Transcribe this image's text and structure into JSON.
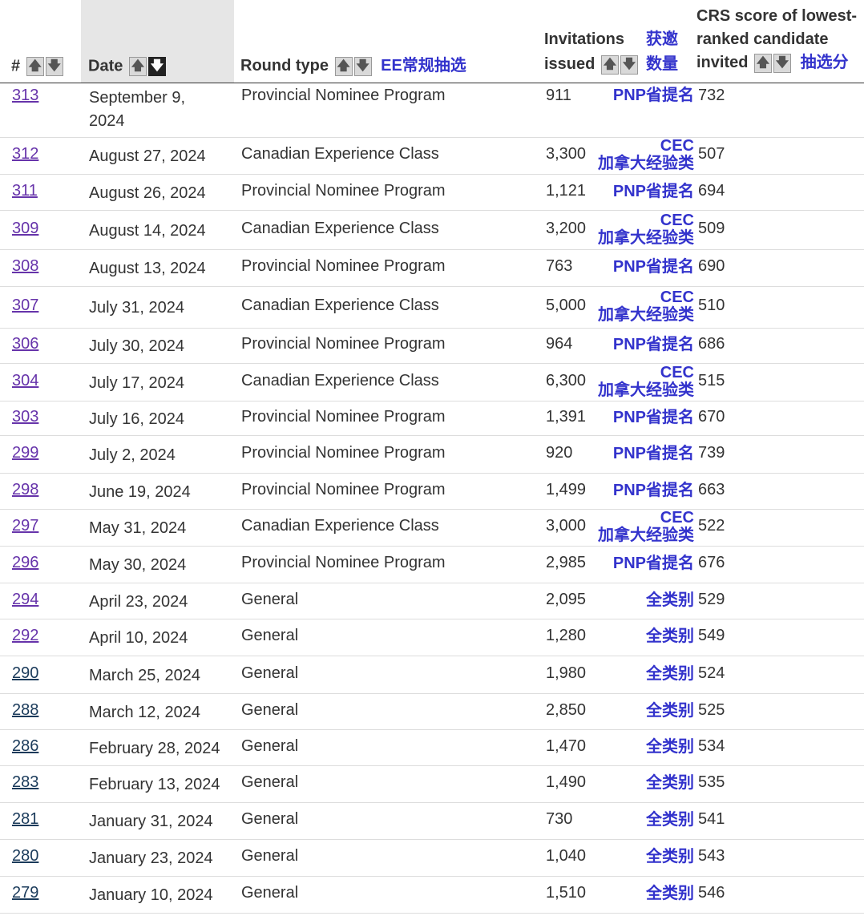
{
  "header": {
    "num": "#",
    "date": "Date",
    "round_type": "Round type",
    "ee_note": "EE常规抽选",
    "invitations_line1": "Invitations",
    "invitations_line2": "issued",
    "invitations_note_line1": "获邀",
    "invitations_note_line2": "数量",
    "crs_line1": "CRS score of lowest-",
    "crs_line2": "ranked candidate",
    "crs_line3": "invited",
    "crs_note": "抽选分",
    "arrow_up": "🡅",
    "arrow_down": "🡇"
  },
  "rows": [
    {
      "num": "313",
      "date": "September 9,",
      "date2": "2024",
      "type": "Provincial Nominee Program",
      "inv": "911",
      "label": "PNP省提名",
      "label2": "",
      "crs": "732"
    },
    {
      "num": "312",
      "date": "August 27, 2024",
      "date2": "",
      "type": "Canadian Experience Class",
      "inv": "3,300",
      "label": "CEC",
      "label2": "加拿大经验类",
      "crs": "507"
    },
    {
      "num": "311",
      "date": "August 26, 2024",
      "date2": "",
      "type": "Provincial Nominee Program",
      "inv": "1,121",
      "label": "PNP省提名",
      "label2": "",
      "crs": "694"
    },
    {
      "num": "309",
      "date": "August 14, 2024",
      "date2": "",
      "type": "Canadian Experience Class",
      "inv": "3,200",
      "label": "CEC",
      "label2": "加拿大经验类",
      "crs": "509"
    },
    {
      "num": "308",
      "date": "August 13, 2024",
      "date2": "",
      "type": "Provincial Nominee Program",
      "inv": "763",
      "label": "PNP省提名",
      "label2": "",
      "crs": "690"
    },
    {
      "num": "307",
      "date": "July 31, 2024",
      "date2": "",
      "type": "Canadian Experience Class",
      "inv": "5,000",
      "label": "CEC",
      "label2": "加拿大经验类",
      "crs": "510"
    },
    {
      "num": "306",
      "date": "July 30, 2024",
      "date2": "",
      "type": "Provincial Nominee Program",
      "inv": "964",
      "label": "PNP省提名",
      "label2": "",
      "crs": "686"
    },
    {
      "num": "304",
      "date": "July 17, 2024",
      "date2": "",
      "type": "Canadian Experience Class",
      "inv": "6,300",
      "label": "CEC",
      "label2": "加拿大经验类",
      "crs": "515"
    },
    {
      "num": "303",
      "date": "July 16, 2024",
      "date2": "",
      "type": "Provincial Nominee Program",
      "inv": "1,391",
      "label": "PNP省提名",
      "label2": "",
      "crs": "670"
    },
    {
      "num": "299",
      "date": "July 2, 2024",
      "date2": "",
      "type": "Provincial Nominee Program",
      "inv": "920",
      "label": "PNP省提名",
      "label2": "",
      "crs": "739"
    },
    {
      "num": "298",
      "date": "June 19, 2024",
      "date2": "",
      "type": "Provincial Nominee Program",
      "inv": "1,499",
      "label": "PNP省提名",
      "label2": "",
      "crs": "663"
    },
    {
      "num": "297",
      "date": "May 31, 2024",
      "date2": "",
      "type": "Canadian Experience Class",
      "inv": "3,000",
      "label": "CEC",
      "label2": "加拿大经验类",
      "crs": "522"
    },
    {
      "num": "296",
      "date": "May 30, 2024",
      "date2": "",
      "type": "Provincial Nominee Program",
      "inv": "2,985",
      "label": "PNP省提名",
      "label2": "",
      "crs": "676"
    },
    {
      "num": "294",
      "date": "April 23, 2024",
      "date2": "",
      "type": "General",
      "inv": "2,095",
      "label": "全类别",
      "label2": "",
      "crs": "529"
    },
    {
      "num": "292",
      "date": "April 10, 2024",
      "date2": "",
      "type": "General",
      "inv": "1,280",
      "label": "全类别",
      "label2": "",
      "crs": "549"
    },
    {
      "num": "290",
      "date": "March 25, 2024",
      "date2": "",
      "type": "General",
      "inv": "1,980",
      "label": "全类别",
      "label2": "",
      "crs": "524"
    },
    {
      "num": "288",
      "date": "March 12, 2024",
      "date2": "",
      "type": "General",
      "inv": "2,850",
      "label": "全类别",
      "label2": "",
      "crs": "525"
    },
    {
      "num": "286",
      "date": "February 28, 2024",
      "date2": "",
      "type": "General",
      "inv": "1,470",
      "label": "全类别",
      "label2": "",
      "crs": "534"
    },
    {
      "num": "283",
      "date": "February 13, 2024",
      "date2": "",
      "type": "General",
      "inv": "1,490",
      "label": "全类别",
      "label2": "",
      "crs": "535"
    },
    {
      "num": "281",
      "date": "January 31, 2024",
      "date2": "",
      "type": "General",
      "inv": "730",
      "label": "全类别",
      "label2": "",
      "crs": "541"
    },
    {
      "num": "280",
      "date": "January 23, 2024",
      "date2": "",
      "type": "General",
      "inv": "1,040",
      "label": "全类别",
      "label2": "",
      "crs": "543"
    },
    {
      "num": "279",
      "date": "January 10, 2024",
      "date2": "",
      "type": "General",
      "inv": "1,510",
      "label": "全类别",
      "label2": "",
      "crs": "546"
    }
  ]
}
